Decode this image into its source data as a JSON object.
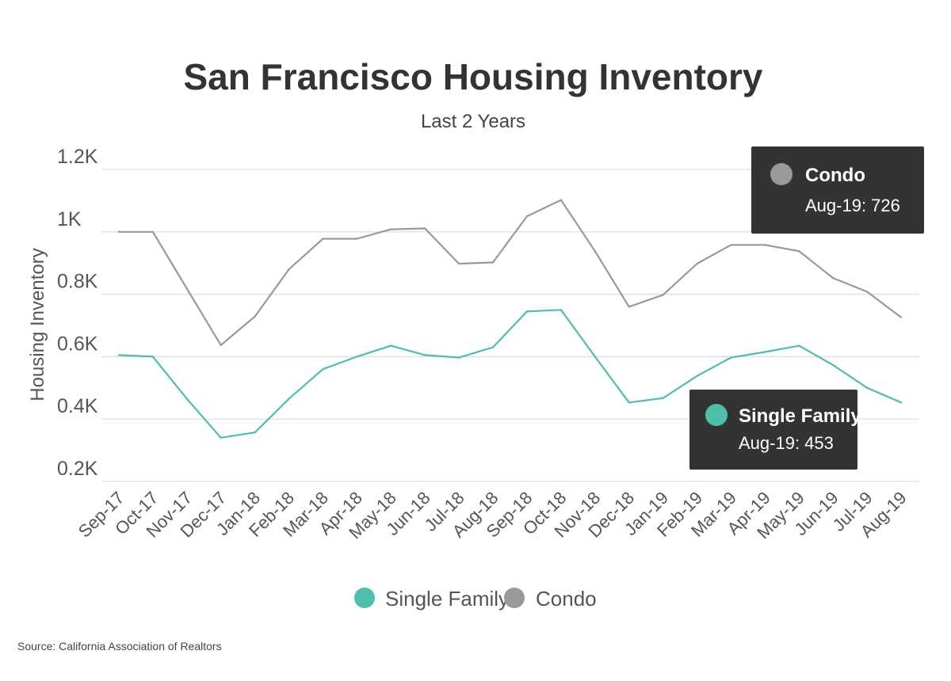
{
  "title": "San Francisco Housing Inventory",
  "subtitle": "Last 2 Years",
  "source": "Source:  California Association of Realtors",
  "colors": {
    "single_family": "#4dbfaa",
    "condo": "#999999",
    "grid": "#dddddd",
    "tooltip_bg": "#333333"
  },
  "chart_data": {
    "type": "line",
    "title": "San Francisco Housing Inventory",
    "subtitle": "Last 2 Years",
    "ylabel": "Housing Inventory",
    "xlabel": "",
    "ylim": [
      200,
      1200
    ],
    "yticks": [
      {
        "value": 200,
        "label": "0.2K"
      },
      {
        "value": 400,
        "label": "0.4K"
      },
      {
        "value": 600,
        "label": "0.6K"
      },
      {
        "value": 800,
        "label": "0.8K"
      },
      {
        "value": 1000,
        "label": "1K"
      },
      {
        "value": 1200,
        "label": "1.2K"
      }
    ],
    "grid": true,
    "legend_position": "bottom",
    "categories": [
      "Sep-17",
      "Oct-17",
      "Nov-17",
      "Dec-17",
      "Jan-18",
      "Feb-18",
      "Mar-18",
      "Apr-18",
      "May-18",
      "Jun-18",
      "Jul-18",
      "Aug-18",
      "Sep-18",
      "Oct-18",
      "Nov-18",
      "Dec-18",
      "Jan-19",
      "Feb-19",
      "Mar-19",
      "Apr-19",
      "May-19",
      "Jun-19",
      "Jul-19",
      "Aug-19"
    ],
    "series": [
      {
        "key": "single_family",
        "name": "Single Family",
        "color": "#4dbfaa",
        "values": [
          605,
          600,
          465,
          340,
          357,
          465,
          560,
          600,
          635,
          605,
          597,
          630,
          745,
          750,
          600,
          453,
          467,
          538,
          597,
          615,
          635,
          573,
          500,
          453
        ]
      },
      {
        "key": "condo",
        "name": "Condo",
        "color": "#999999",
        "values": [
          1000,
          1000,
          818,
          637,
          729,
          880,
          978,
          978,
          1008,
          1011,
          898,
          902,
          1050,
          1102,
          938,
          760,
          798,
          898,
          958,
          958,
          938,
          852,
          808,
          726
        ]
      }
    ],
    "tooltips": [
      {
        "series": "Condo",
        "label": "Aug-19: 726"
      },
      {
        "series": "Single Family",
        "label": "Aug-19: 453"
      }
    ]
  }
}
